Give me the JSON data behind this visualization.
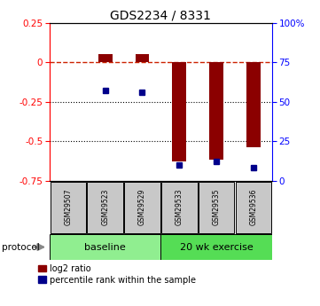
{
  "title": "GDS2234 / 8331",
  "samples": [
    "GSM29507",
    "GSM29523",
    "GSM29529",
    "GSM29533",
    "GSM29535",
    "GSM29536"
  ],
  "log2_ratio": [
    0.0,
    0.055,
    0.055,
    -0.63,
    -0.62,
    -0.54
  ],
  "percentile_rank": [
    null,
    57,
    56,
    10,
    12,
    8
  ],
  "groups": [
    {
      "label": "baseline",
      "samples": [
        0,
        1,
        2
      ],
      "color": "#90EE90"
    },
    {
      "label": "20 wk exercise",
      "samples": [
        3,
        4,
        5
      ],
      "color": "#55DD55"
    }
  ],
  "ylim_left": [
    -0.75,
    0.25
  ],
  "ylim_right": [
    0,
    100
  ],
  "bar_color": "#8B0000",
  "dot_color": "#00008B",
  "dashed_line_color": "#CC2200",
  "dotted_line_color": "#000000",
  "yticks_left": [
    0.25,
    0.0,
    -0.25,
    -0.5,
    -0.75
  ],
  "yticks_right": [
    100,
    75,
    50,
    25,
    0
  ],
  "background_plot": "#FFFFFF",
  "sample_box_color": "#C8C8C8",
  "protocol_label": "protocol"
}
